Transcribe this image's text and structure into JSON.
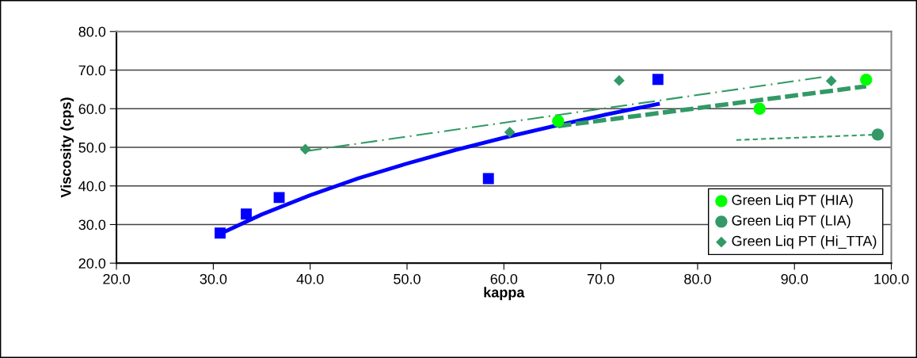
{
  "chart_data": {
    "type": "scatter",
    "xlabel": "kappa",
    "ylabel": "Viscosity (cps)",
    "xlim": [
      20,
      100
    ],
    "ylim": [
      20,
      80
    ],
    "xticks": [
      {
        "value": 20,
        "label": "20.0"
      },
      {
        "value": 30,
        "label": "30.0"
      },
      {
        "value": 40,
        "label": "40.0"
      },
      {
        "value": 50,
        "label": "50.0"
      },
      {
        "value": 60,
        "label": "60.0"
      },
      {
        "value": 70,
        "label": "70.0"
      },
      {
        "value": 80,
        "label": "80.0"
      },
      {
        "value": 90,
        "label": "90.0"
      },
      {
        "value": 100,
        "label": "100.0"
      }
    ],
    "yticks": [
      {
        "value": 20,
        "label": "20.0"
      },
      {
        "value": 30,
        "label": "30.0"
      },
      {
        "value": 40,
        "label": "40.0"
      },
      {
        "value": 50,
        "label": "50.0"
      },
      {
        "value": 60,
        "label": "60.0"
      },
      {
        "value": 70,
        "label": "70.0"
      },
      {
        "value": 80,
        "label": "80.0"
      }
    ],
    "grid": "y",
    "legend": "bottom right",
    "series": [
      {
        "marker": "square",
        "color": "#0000ff",
        "x": [
          30.7,
          33.4,
          36.8,
          58.4,
          75.9
        ],
        "values": [
          27.8,
          32.7,
          37.0,
          41.9,
          67.6
        ]
      },
      {
        "type": "line",
        "line_style": "solid",
        "color": "#0000ff",
        "x": [
          30.7,
          35,
          40,
          45,
          50,
          55,
          60,
          65,
          70,
          75.9
        ],
        "values": [
          27.6,
          32.6,
          37.6,
          42.0,
          45.8,
          49.3,
          52.5,
          55.4,
          58.2,
          61.2
        ]
      },
      {
        "name": "Green Liq PT (HIA)",
        "marker": "circle",
        "color": "#00ff00",
        "x": [
          65.6,
          86.4,
          97.4
        ],
        "values": [
          56.8,
          60.0,
          67.5
        ]
      },
      {
        "type": "line",
        "line_style": "dashed",
        "color": "#339966",
        "x": [
          65.6,
          97.4
        ],
        "values": [
          55.5,
          65.8
        ]
      },
      {
        "name": "Green Liq PT (LIA)",
        "marker": "circle",
        "color": "#339966",
        "x": [
          98.6
        ],
        "values": [
          53.3
        ]
      },
      {
        "type": "line",
        "line_style": "dotted",
        "color": "#339966",
        "x": [
          84.0,
          98.6
        ],
        "values": [
          51.9,
          53.3
        ]
      },
      {
        "name": "Green Liq PT (Hi_TTA)",
        "marker": "diamond",
        "color": "#339966",
        "x": [
          39.5,
          60.6,
          71.9,
          93.8
        ],
        "values": [
          49.5,
          53.9,
          67.3,
          67.2
        ]
      },
      {
        "type": "line",
        "line_style": "dashdot",
        "color": "#339966",
        "x": [
          39.5,
          93.2
        ],
        "values": [
          49.0,
          68.3
        ]
      }
    ]
  }
}
